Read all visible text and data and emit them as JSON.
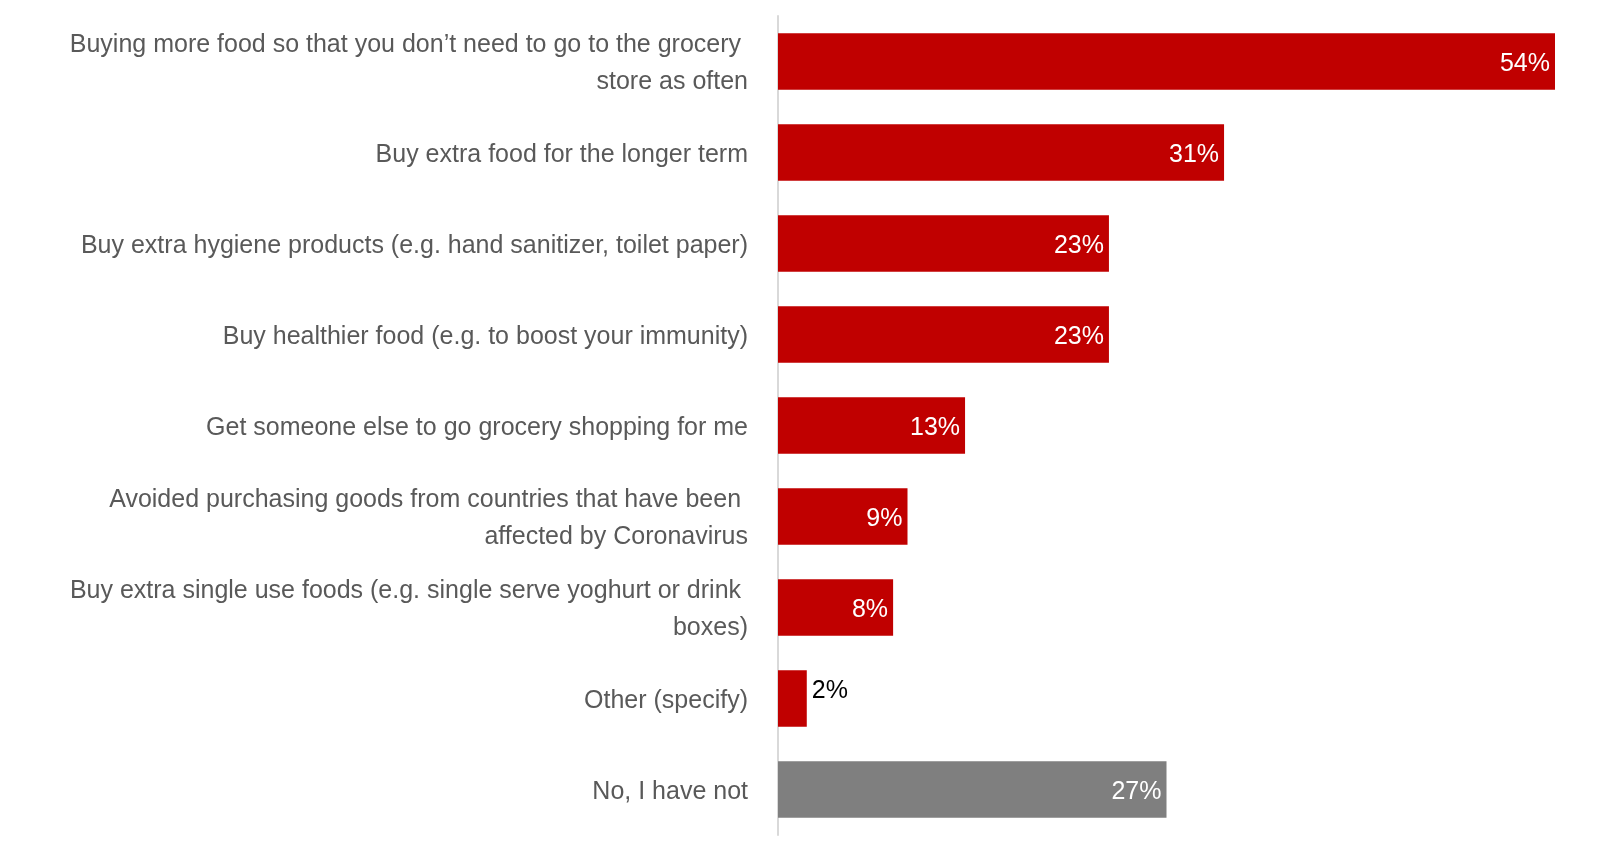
{
  "chart_data": {
    "type": "bar",
    "orientation": "horizontal",
    "categories": [
      "Buying more food so that you don’t need to go to the grocery store as often",
      "Buy extra food for the longer term",
      "Buy extra hygiene products (e.g. hand sanitizer, toilet paper)",
      "Buy healthier food (e.g. to boost your immunity)",
      "Get someone else to go grocery shopping for me",
      "Avoided purchasing goods from countries that have been affected by Coronavirus",
      "Buy extra single use foods (e.g. single serve yoghurt or drink boxes)",
      "Other (specify)",
      "No, I have not"
    ],
    "values": [
      54,
      31,
      23,
      23,
      13,
      9,
      8,
      2,
      27
    ],
    "colors": [
      "#c00000",
      "#c00000",
      "#c00000",
      "#c00000",
      "#c00000",
      "#c00000",
      "#c00000",
      "#c00000",
      "#7f7f7f"
    ],
    "value_labels": [
      "54%",
      "31%",
      "23%",
      "23%",
      "13%",
      "9%",
      "8%",
      "2%",
      "27%"
    ]
  }
}
